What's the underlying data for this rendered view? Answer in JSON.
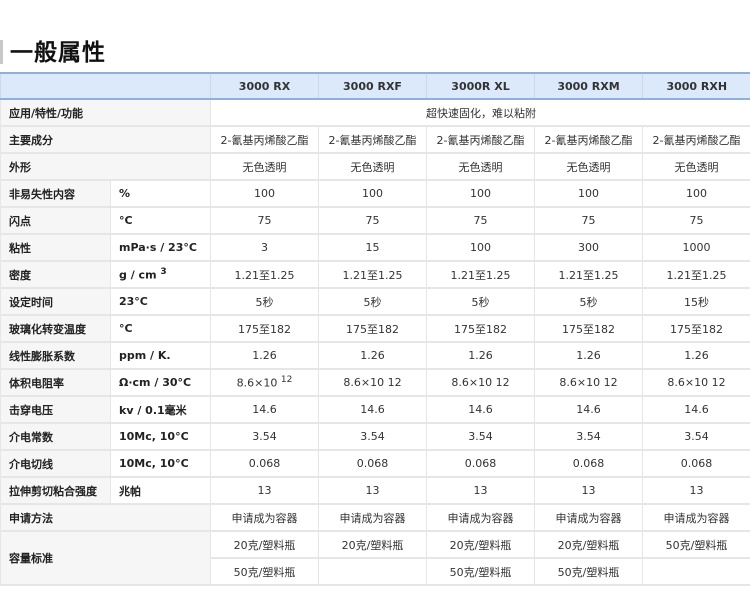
{
  "page": {
    "title": "一般属性"
  },
  "table": {
    "columns": [
      "3000 RX",
      "3000 RXF",
      "3000R XL",
      "3000 RXM",
      "3000 RXH"
    ],
    "application": {
      "label": "应用/特性/功能",
      "value": "超快速固化，难以粘附"
    },
    "rows": [
      {
        "label": "主要成分",
        "unit": null,
        "values": [
          "2-氰基丙烯酸乙酯",
          "2-氰基丙烯酸乙酯",
          "2-氰基丙烯酸乙酯",
          "2-氰基丙烯酸乙酯",
          "2-氰基丙烯酸乙酯"
        ]
      },
      {
        "label": "外形",
        "unit": null,
        "values": [
          "无色透明",
          "无色透明",
          "无色透明",
          "无色透明",
          "无色透明"
        ]
      },
      {
        "label": "非易失性内容",
        "unit": "%",
        "values": [
          "100",
          "100",
          "100",
          "100",
          "100"
        ]
      },
      {
        "label": "闪点",
        "unit": "°C",
        "values": [
          "75",
          "75",
          "75",
          "75",
          "75"
        ]
      },
      {
        "label": "粘性",
        "unit": "mPa·s / 23°C",
        "values": [
          "3",
          "15",
          "100",
          "300",
          "1000"
        ]
      },
      {
        "label": "密度",
        "unit": "g / cm 3",
        "values": [
          "1.21至1.25",
          "1.21至1.25",
          "1.21至1.25",
          "1.21至1.25",
          "1.21至1.25"
        ]
      },
      {
        "label": "设定时间",
        "unit": "23°C",
        "values": [
          "5秒",
          "5秒",
          "5秒",
          "5秒",
          "15秒"
        ]
      },
      {
        "label": "玻璃化转变温度",
        "unit": "°C",
        "values": [
          "175至182",
          "175至182",
          "175至182",
          "175至182",
          "175至182"
        ]
      },
      {
        "label": "线性膨胀系数",
        "unit": "ppm / K.",
        "values": [
          "1.26",
          "1.26",
          "1.26",
          "1.26",
          "1.26"
        ]
      },
      {
        "label": "体积电阻率",
        "unit": "Ω·cm / 30°C",
        "values": [
          "8.6×10 12",
          "8.6×10 12",
          "8.6×10 12",
          "8.6×10 12",
          "8.6×10 12"
        ]
      },
      {
        "label": "击穿电压",
        "unit": "kv / 0.1毫米",
        "values": [
          "14.6",
          "14.6",
          "14.6",
          "14.6",
          "14.6"
        ]
      },
      {
        "label": "介电常数",
        "unit": "10Mc, 10°C",
        "values": [
          "3.54",
          "3.54",
          "3.54",
          "3.54",
          "3.54"
        ]
      },
      {
        "label": "介电切线",
        "unit": "10Mc, 10°C",
        "values": [
          "0.068",
          "0.068",
          "0.068",
          "0.068",
          "0.068"
        ]
      },
      {
        "label": "拉伸剪切粘合强度",
        "unit": "兆帕",
        "values": [
          "13",
          "13",
          "13",
          "13",
          "13"
        ]
      },
      {
        "label": "申请方法",
        "unit": null,
        "values": [
          "申请成为容器",
          "申请成为容器",
          "申请成为容器",
          "申请成为容器",
          "申请成为容器"
        ]
      }
    ],
    "capacity": {
      "label": "容量标准",
      "lines": [
        [
          "20克/塑料瓶",
          "20克/塑料瓶",
          "20克/塑料瓶",
          "20克/塑料瓶",
          "50克/塑料瓶"
        ],
        [
          "50克/塑料瓶",
          "",
          "50克/塑料瓶",
          "50克/塑料瓶",
          ""
        ]
      ]
    }
  }
}
